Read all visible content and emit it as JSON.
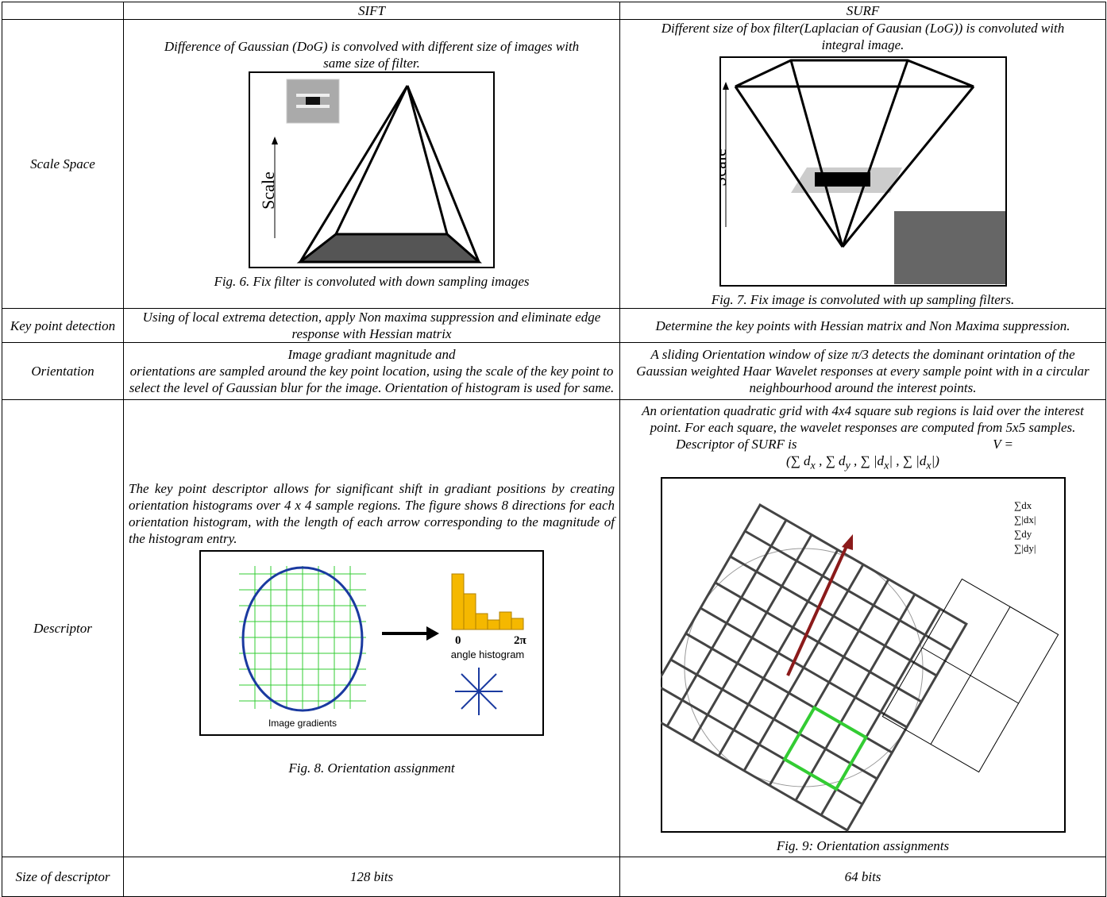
{
  "header": {
    "sift": "SIFT",
    "surf": "SURF"
  },
  "rows": [
    {
      "label": "Scale Space",
      "sift": {
        "text": "Difference of Gaussian (DoG) is convolved with different size of images with same size of filter.",
        "figure_label": "Scale",
        "caption": "Fig. 6. Fix filter  is convoluted with down sampling images"
      },
      "surf": {
        "text": "Different size of box filter(Laplacian of Gausian (LoG)) is convoluted with integral image.",
        "figure_label": "Scale",
        "caption": "Fig. 7. Fix image is convoluted with up sampling filters."
      }
    },
    {
      "label": "Key point detection",
      "sift": {
        "text": "Using of local extrema detection, apply Non maxima suppression and eliminate edge response with Hessian matrix"
      },
      "surf": {
        "text": "Determine the key points with Hessian matrix and Non Maxima suppression."
      }
    },
    {
      "label": "Orientation",
      "sift": {
        "lines": [
          "Image gradiant magnitude and",
          "orientations are sampled around the key point location, using the scale of the key point to select the level of Gaussian blur for the image. Orientation of histogram is used for same."
        ]
      },
      "surf": {
        "text": "A sliding Orientation window of size π/3 detects the dominant orintation of the Gaussian weighted Haar Wavelet responses at every sample point with in a circular neighbourhood around the interest points."
      }
    },
    {
      "label": "Descriptor",
      "sift": {
        "text": "The key point descriptor allows for significant shift in gradiant positions by creating orientation histograms over 4 x 4 sample regions. The figure shows 8 directions for each orientation histogram, with the length of each arrow corresponding to the magnitude of the histogram entry.",
        "figure_labels": [
          "0",
          "2π",
          "angle histogram",
          "Image gradients"
        ],
        "caption": "Fig. 8. Orientation assignment"
      },
      "surf": {
        "text": "An orientation quadratic grid with 4x4 square sub regions is laid over the interest point. For each square, the wavelet responses are computed from 5x5 samples.",
        "formula_intro": "Descriptor of SURF is",
        "formula": [
          "V =",
          "(∑ d",
          "x",
          " , ∑ d",
          "y",
          " , ∑ |d",
          "x",
          "| , ∑ |d",
          "x",
          "|)"
        ],
        "figure_labels": [
          "∑dx",
          "∑|dx|",
          "∑dy",
          "∑|dy|"
        ],
        "caption": "Fig. 9: Orientation assignments"
      }
    },
    {
      "label": "Size of descriptor",
      "sift": {
        "text": "128 bits"
      },
      "surf": {
        "text": "64 bits"
      }
    }
  ]
}
